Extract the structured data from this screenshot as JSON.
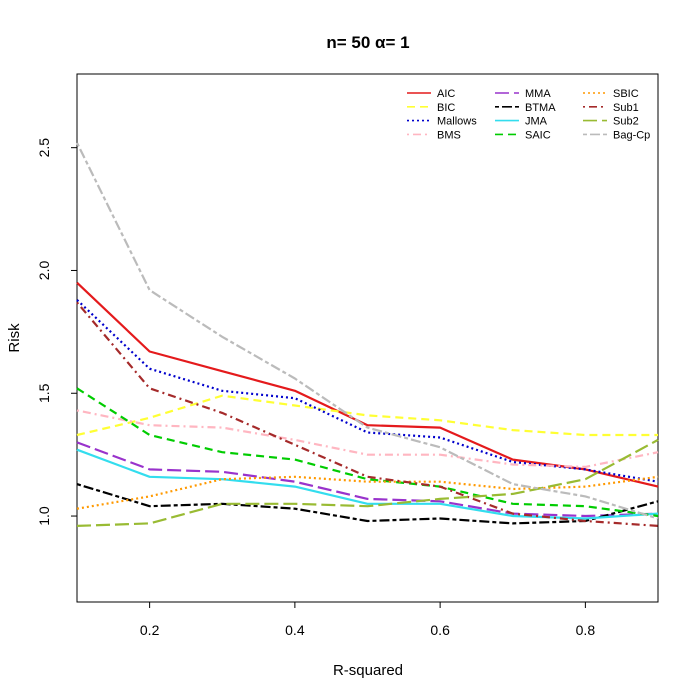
{
  "chart_data": {
    "type": "line",
    "title": "n= 50 α= 1",
    "xlabel": "R-squared",
    "ylabel": "Risk",
    "x": [
      0.1,
      0.2,
      0.3,
      0.4,
      0.5,
      0.6,
      0.7,
      0.8,
      0.9
    ],
    "xlim": [
      0.1,
      0.9
    ],
    "ylim": [
      0.65,
      2.8
    ],
    "xticks": [
      0.2,
      0.4,
      0.6,
      0.8
    ],
    "xtick_labels": [
      "0.2",
      "0.4",
      "0.6",
      "0.8"
    ],
    "yticks": [
      1.0,
      1.5,
      2.0,
      2.5
    ],
    "ytick_labels": [
      "1.0",
      "1.5",
      "2.0",
      "2.5"
    ],
    "legend_position": "top-right",
    "grid": false,
    "series": [
      {
        "name": "AIC",
        "color": "#E41A1C",
        "dash": "solid",
        "values": [
          1.95,
          1.67,
          1.59,
          1.51,
          1.37,
          1.36,
          1.23,
          1.19,
          1.12
        ]
      },
      {
        "name": "BIC",
        "color": "#FFFF33",
        "dash": "dashed",
        "values": [
          1.33,
          1.4,
          1.49,
          1.45,
          1.41,
          1.39,
          1.35,
          1.33,
          1.33
        ]
      },
      {
        "name": "Mallows",
        "color": "#0000CC",
        "dash": "dotted",
        "values": [
          1.88,
          1.6,
          1.51,
          1.48,
          1.34,
          1.32,
          1.22,
          1.19,
          1.14
        ]
      },
      {
        "name": "BMS",
        "color": "#FFB6C1",
        "dash": "dotdash",
        "values": [
          1.43,
          1.37,
          1.36,
          1.31,
          1.25,
          1.25,
          1.21,
          1.2,
          1.26
        ]
      },
      {
        "name": "MMA",
        "color": "#9933CC",
        "dash": "longdash",
        "values": [
          1.3,
          1.19,
          1.18,
          1.14,
          1.07,
          1.06,
          1.01,
          1.0,
          1.01
        ]
      },
      {
        "name": "BTMA",
        "color": "#000000",
        "dash": "twodash",
        "values": [
          1.13,
          1.04,
          1.05,
          1.03,
          0.98,
          0.99,
          0.97,
          0.98,
          1.06
        ]
      },
      {
        "name": "JMA",
        "color": "#33DDEE",
        "dash": "solid",
        "values": [
          1.27,
          1.16,
          1.15,
          1.12,
          1.05,
          1.05,
          1.0,
          0.99,
          1.01
        ]
      },
      {
        "name": "SAIC",
        "color": "#00CC00",
        "dash": "dashed",
        "values": [
          1.52,
          1.33,
          1.26,
          1.23,
          1.15,
          1.12,
          1.05,
          1.04,
          1.0
        ]
      },
      {
        "name": "SBIC",
        "color": "#FF9900",
        "dash": "dotted",
        "values": [
          1.03,
          1.08,
          1.15,
          1.16,
          1.14,
          1.14,
          1.11,
          1.12,
          1.16
        ]
      },
      {
        "name": "Sub1",
        "color": "#A52A2A",
        "dash": "dotdash",
        "values": [
          1.87,
          1.52,
          1.42,
          1.29,
          1.16,
          1.12,
          1.01,
          0.98,
          0.96
        ]
      },
      {
        "name": "Sub2",
        "color": "#99BB33",
        "dash": "longdash",
        "values": [
          0.96,
          0.97,
          1.05,
          1.05,
          1.04,
          1.07,
          1.09,
          1.15,
          1.31
        ]
      },
      {
        "name": "Bag-Cp",
        "color": "#BBBBBB",
        "dash": "twodash",
        "values": [
          2.52,
          1.92,
          1.73,
          1.56,
          1.36,
          1.28,
          1.13,
          1.08,
          0.99
        ]
      }
    ]
  }
}
